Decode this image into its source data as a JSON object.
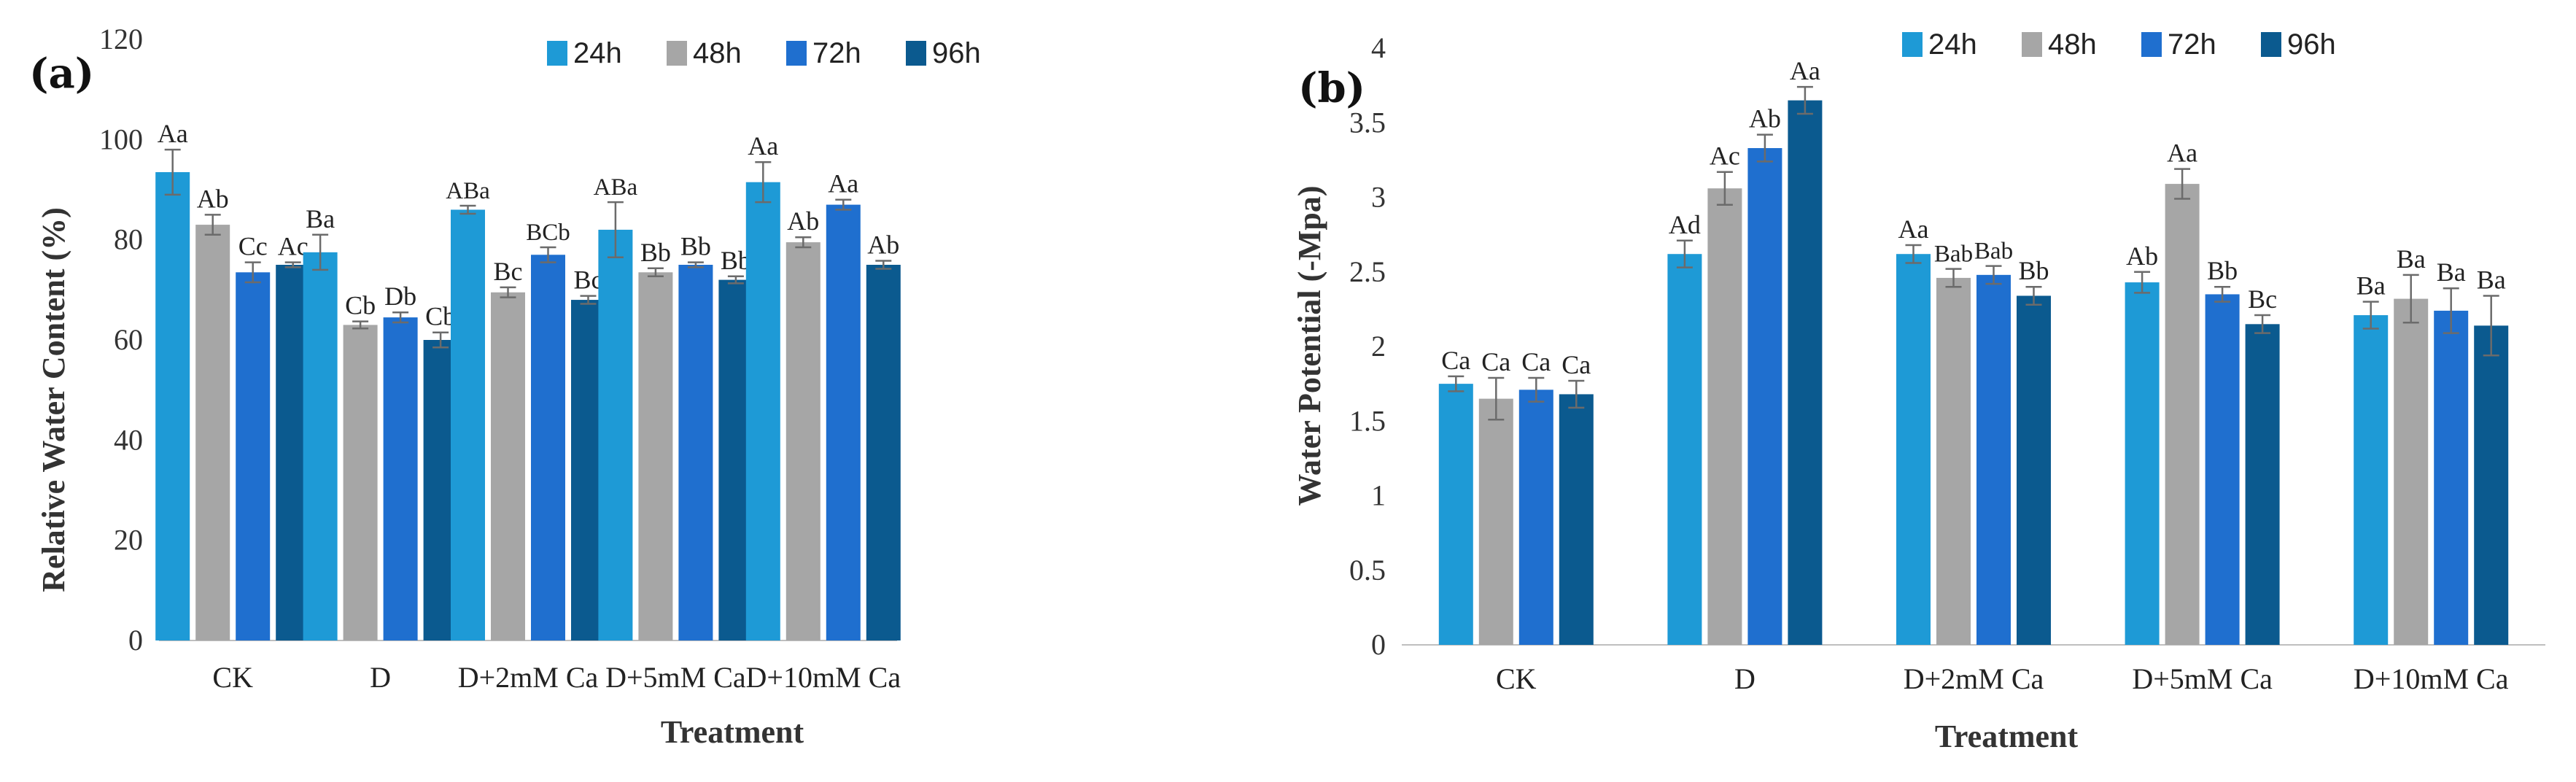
{
  "chart_data": [
    {
      "type": "bar",
      "panel": "(a)",
      "categories": [
        "CK",
        "D",
        "D+2mM Ca",
        "D+5mM Ca",
        "D+10mM Ca"
      ],
      "series": [
        {
          "name": "24h",
          "values": [
            93.5,
            77.5,
            86,
            82,
            91.5
          ],
          "errors": [
            4.5,
            3.5,
            0.8,
            5.5,
            4
          ],
          "labels": [
            "Aa",
            "Ba",
            "ABa",
            "ABa",
            "Aa"
          ]
        },
        {
          "name": "48h",
          "values": [
            83,
            63,
            69.5,
            73.5,
            79.5
          ],
          "errors": [
            2,
            0.7,
            1,
            0.8,
            1
          ],
          "labels": [
            "Ab",
            "Cb",
            "Bc",
            "Bb",
            "Ab"
          ]
        },
        {
          "name": "72h",
          "values": [
            73.5,
            64.5,
            77,
            75,
            87
          ],
          "errors": [
            2,
            1,
            1.5,
            0.5,
            1
          ],
          "labels": [
            "Cc",
            "Db",
            "BCb",
            "Bb",
            "Aa"
          ]
        },
        {
          "name": "96h",
          "values": [
            75,
            60,
            68,
            72,
            75
          ],
          "errors": [
            0.5,
            1.5,
            0.8,
            0.7,
            0.8
          ],
          "labels": [
            "Ac",
            "Cb",
            "Bc",
            "Bb",
            "Ab"
          ]
        }
      ],
      "ylabel": "Relative Water Content (%)",
      "xlabel": "Treatment",
      "ylim": [
        0,
        120
      ],
      "yticks": [
        "0",
        "20",
        "40",
        "60",
        "80",
        "100",
        "120"
      ],
      "legend": "top"
    },
    {
      "type": "bar",
      "panel": "(b)",
      "categories": [
        "CK",
        "D",
        "D+2mM Ca",
        "D+5mM Ca",
        "D+10mM Ca"
      ],
      "series": [
        {
          "name": "24h",
          "values": [
            1.75,
            2.62,
            2.62,
            2.43,
            2.21
          ],
          "errors": [
            0.05,
            0.09,
            0.06,
            0.07,
            0.09
          ],
          "labels": [
            "Ca",
            "Ad",
            "Aa",
            "Ab",
            "Ba"
          ]
        },
        {
          "name": "48h",
          "values": [
            1.65,
            3.06,
            2.46,
            3.09,
            2.32
          ],
          "errors": [
            0.14,
            0.11,
            0.06,
            0.1,
            0.16
          ],
          "labels": [
            "Ca",
            "Ac",
            "Bab",
            "Aa",
            "Ba"
          ]
        },
        {
          "name": "72h",
          "values": [
            1.71,
            3.33,
            2.48,
            2.35,
            2.24
          ],
          "errors": [
            0.08,
            0.09,
            0.06,
            0.05,
            0.15
          ],
          "labels": [
            "Ca",
            "Ab",
            "Bab",
            "Bb",
            "Ba"
          ]
        },
        {
          "name": "96h",
          "values": [
            1.68,
            3.65,
            2.34,
            2.15,
            2.14
          ],
          "errors": [
            0.09,
            0.09,
            0.06,
            0.06,
            0.2
          ],
          "labels": [
            "Ca",
            "Aa",
            "Bb",
            "Bc",
            "Ba"
          ]
        }
      ],
      "ylabel": "Water Potential (-Mpa)",
      "xlabel": "Treatment",
      "ylim": [
        0,
        4
      ],
      "yticks": [
        "0",
        "0.5",
        "1",
        "1.5",
        "2",
        "2.5",
        "3",
        "3.5",
        "4"
      ],
      "legend": "top"
    }
  ],
  "colors": [
    "#1e9ad6",
    "#a6a6a6",
    "#1f6fcf",
    "#0b5a8f"
  ]
}
